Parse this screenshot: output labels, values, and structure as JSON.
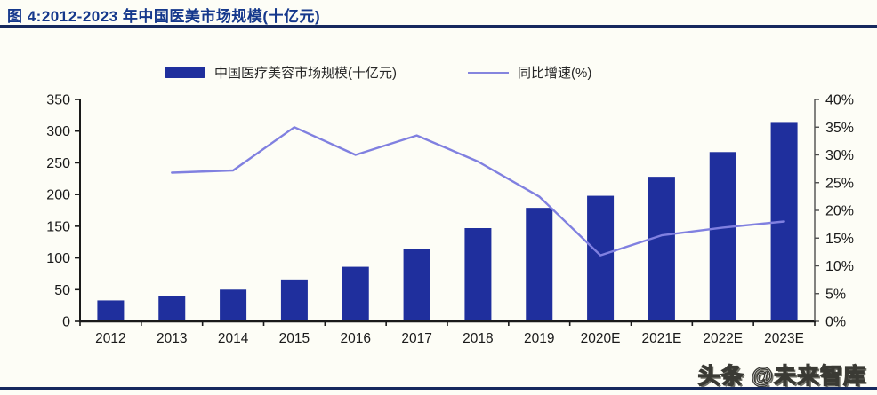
{
  "header": {
    "title": "图 4:2012-2023 年中国医美市场规模(十亿元)"
  },
  "legend": {
    "bar_label": "中国医疗美容市场规模(十亿元)",
    "line_label": "同比增速(%)"
  },
  "watermark": "头条 @未来智库",
  "colors": {
    "bar": "#1f2f9d",
    "line": "#8080e0",
    "axis": "#1a1a1a",
    "right_axis": "#4d4d4d",
    "title_blue": "#15388c",
    "rule_navy": "#16295e",
    "background": "#fdfdf6"
  },
  "chart_data": {
    "type": "bar",
    "title": "图 4:2012-2023 年中国医美市场规模(十亿元)",
    "categories": [
      "2012",
      "2013",
      "2014",
      "2015",
      "2016",
      "2017",
      "2018",
      "2019",
      "2020E",
      "2021E",
      "2022E",
      "2023E"
    ],
    "series": [
      {
        "name": "中国医疗美容市场规模(十亿元)",
        "type": "bar",
        "axis": "left",
        "values": [
          33,
          40,
          50,
          66,
          86,
          114,
          147,
          179,
          198,
          228,
          267,
          313
        ]
      },
      {
        "name": "同比增速(%)",
        "type": "line",
        "axis": "right",
        "values": [
          null,
          26.8,
          27.2,
          35,
          30,
          33.5,
          28.8,
          22.5,
          11.9,
          15.5,
          16.9,
          18
        ]
      }
    ],
    "left_axis": {
      "min": 0,
      "max": 350,
      "step": 50,
      "suffix": ""
    },
    "right_axis": {
      "min": 0,
      "max": 40,
      "step": 5,
      "suffix": "%"
    },
    "xlabel": "",
    "ylabel": "",
    "grid": false,
    "legend_position": "top"
  }
}
